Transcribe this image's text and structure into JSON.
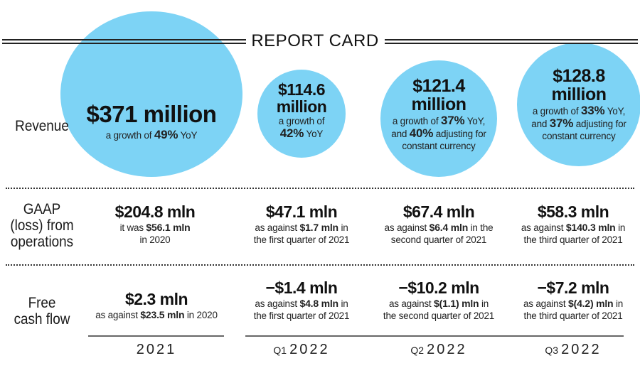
{
  "title": "REPORT CARD",
  "colors": {
    "bubble": "#7dd3f5",
    "text": "#1a1a1a"
  },
  "rows": {
    "revenue": "Revenue",
    "gaap": [
      "GAAP",
      "(loss) from",
      "operations"
    ],
    "fcf": [
      "Free",
      "cash flow"
    ]
  },
  "periods": [
    {
      "quarter": "",
      "year": "2021"
    },
    {
      "quarter": "Q1",
      "year": "2022"
    },
    {
      "quarter": "Q2",
      "year": "2022"
    },
    {
      "quarter": "Q3",
      "year": "2022"
    }
  ],
  "revenue": [
    {
      "value": "$371 million",
      "pre": "a growth of ",
      "pct": "49%",
      "post": " YoY"
    },
    {
      "value_line1": "$114.6",
      "value_line2": "million",
      "pre": "a growth of",
      "pct": "42%",
      "post": " YoY"
    },
    {
      "value_line1": "$121.4",
      "value_line2": "million",
      "pre": "a growth of ",
      "pct": "37%",
      "post": " YoY,",
      "pre2": "and ",
      "pct2": "40%",
      "post2": " adjusting for",
      "line3": "constant currency"
    },
    {
      "value_line1": "$128.8",
      "value_line2": "million",
      "pre": "a growth of ",
      "pct": "33%",
      "post": " YoY,",
      "pre2": "and ",
      "pct2": "37%",
      "post2": " adjusting for",
      "line3": "constant currency"
    }
  ],
  "gaap": [
    {
      "value": "$204.8 mln",
      "pre": "it was ",
      "bold": "$56.1 mln",
      "post": "",
      "line2": "in 2020"
    },
    {
      "value": "$47.1 mln",
      "pre": "as against ",
      "bold": "$1.7 mln",
      "post": " in",
      "line2": "the first quarter of 2021"
    },
    {
      "value": "$67.4 mln",
      "pre": "as against ",
      "bold": "$6.4 mln",
      "post": " in the",
      "line2": "second quarter of 2021"
    },
    {
      "value": "$58.3 mln",
      "pre": "as against ",
      "bold": "$140.3 mln",
      "post": " in",
      "line2": "the third quarter of 2021"
    }
  ],
  "fcf": [
    {
      "value": "$2.3 mln",
      "pre": "as against ",
      "bold": "$23.5 mln",
      "post": " in 2020",
      "line2": ""
    },
    {
      "value": "−$1.4 mln",
      "pre": "as against ",
      "bold": "$4.8 mln",
      "post": " in",
      "line2": "the first quarter of 2021"
    },
    {
      "value": "−$10.2 mln",
      "pre": "as against ",
      "bold": "$(1.1) mln",
      "post": " in",
      "line2": "the second quarter of 2021"
    },
    {
      "value": "−$7.2 mln",
      "pre": "as against ",
      "bold": "$(4.2) mln",
      "post": " in",
      "line2": "the third quarter of 2021"
    }
  ]
}
